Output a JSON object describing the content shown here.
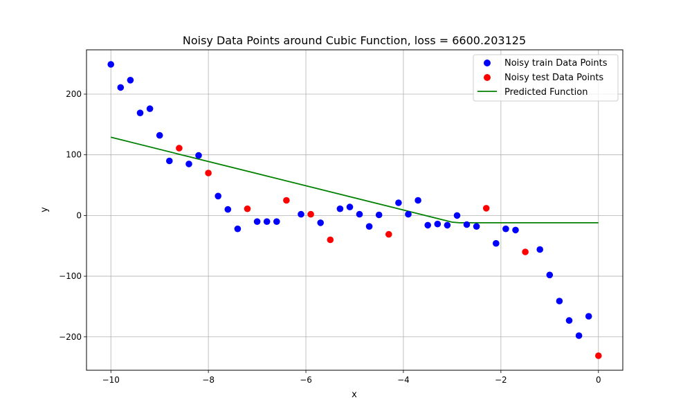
{
  "chart_data": {
    "type": "scatter",
    "title": "Noisy Data Points around Cubic Function, loss = 6600.203125",
    "xlabel": "x",
    "ylabel": "y",
    "xlim": [
      -10.5,
      0.5
    ],
    "ylim": [
      -255,
      273
    ],
    "xticks": [
      -10,
      -8,
      -6,
      -4,
      -2,
      0
    ],
    "yticks": [
      -200,
      -100,
      0,
      100,
      200
    ],
    "xtick_labels": [
      "−10",
      "−8",
      "−6",
      "−4",
      "−2",
      "0"
    ],
    "ytick_labels": [
      "−200",
      "−100",
      "0",
      "100",
      "200"
    ],
    "grid": true,
    "legend_position": "upper right",
    "series": [
      {
        "name": "Noisy train Data Points",
        "kind": "scatter",
        "color": "#0000ff",
        "points": [
          [
            -10.0,
            249
          ],
          [
            -9.8,
            211
          ],
          [
            -9.6,
            223
          ],
          [
            -9.4,
            169
          ],
          [
            -9.2,
            176
          ],
          [
            -9.0,
            132
          ],
          [
            -8.8,
            90
          ],
          [
            -8.4,
            85
          ],
          [
            -8.2,
            99
          ],
          [
            -7.8,
            32
          ],
          [
            -7.6,
            10
          ],
          [
            -7.4,
            -22
          ],
          [
            -7.0,
            -10
          ],
          [
            -6.8,
            -10
          ],
          [
            -6.6,
            -10
          ],
          [
            -6.1,
            2
          ],
          [
            -5.7,
            -12
          ],
          [
            -5.3,
            11
          ],
          [
            -5.1,
            14
          ],
          [
            -4.9,
            2
          ],
          [
            -4.7,
            -18
          ],
          [
            -4.5,
            1
          ],
          [
            -4.1,
            21
          ],
          [
            -3.9,
            2
          ],
          [
            -3.7,
            25
          ],
          [
            -3.5,
            -16
          ],
          [
            -3.3,
            -14
          ],
          [
            -3.1,
            -16
          ],
          [
            -2.9,
            0
          ],
          [
            -2.7,
            -15
          ],
          [
            -2.5,
            -18
          ],
          [
            -2.1,
            -46
          ],
          [
            -1.9,
            -22
          ],
          [
            -1.7,
            -24
          ],
          [
            -1.2,
            -56
          ],
          [
            -1.0,
            -98
          ],
          [
            -0.8,
            -141
          ],
          [
            -0.6,
            -173
          ],
          [
            -0.4,
            -198
          ],
          [
            -0.2,
            -166
          ]
        ]
      },
      {
        "name": "Noisy test Data Points",
        "kind": "scatter",
        "color": "#ff0000",
        "points": [
          [
            -8.6,
            111
          ],
          [
            -8.0,
            70
          ],
          [
            -7.2,
            11
          ],
          [
            -6.4,
            25
          ],
          [
            -5.9,
            2
          ],
          [
            -5.5,
            -40
          ],
          [
            -4.3,
            -31
          ],
          [
            -2.3,
            12
          ],
          [
            -1.5,
            -60
          ],
          [
            0.0,
            -231
          ]
        ]
      },
      {
        "name": "Predicted Function",
        "kind": "line",
        "color": "#008000",
        "points": [
          [
            -10.0,
            129
          ],
          [
            -3.0,
            -11
          ],
          [
            -2.85,
            -12
          ],
          [
            0.0,
            -12
          ]
        ]
      }
    ]
  }
}
